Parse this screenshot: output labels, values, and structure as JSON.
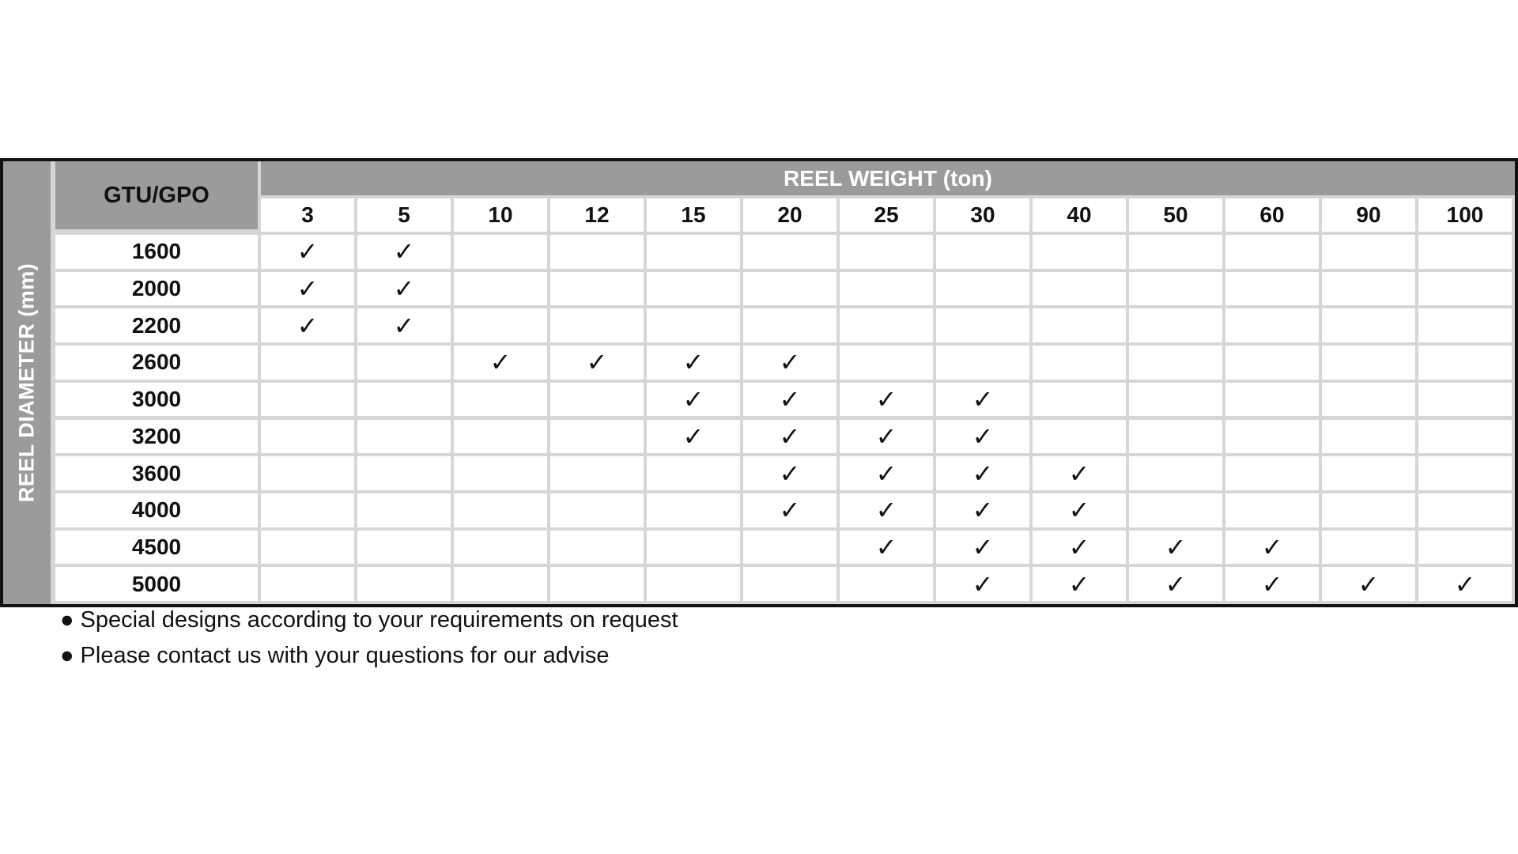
{
  "table": {
    "corner_header": "GTU/GPO",
    "column_group_header": "REEL WEIGHT (ton)",
    "row_group_header": "REEL DIAMETER (mm)",
    "weights": [
      "3",
      "5",
      "10",
      "12",
      "15",
      "20",
      "25",
      "30",
      "40",
      "50",
      "60",
      "90",
      "100"
    ],
    "check_symbol": "✓",
    "rows": [
      {
        "diameter": "1600",
        "checked": [
          "3",
          "5"
        ]
      },
      {
        "diameter": "2000",
        "checked": [
          "3",
          "5"
        ]
      },
      {
        "diameter": "2200",
        "checked": [
          "3",
          "5"
        ]
      },
      {
        "diameter": "2600",
        "checked": [
          "10",
          "12",
          "15",
          "20"
        ]
      },
      {
        "diameter": "3000",
        "checked": [
          "15",
          "20",
          "25",
          "30"
        ]
      },
      {
        "diameter": "3200",
        "checked": [
          "15",
          "20",
          "25",
          "30"
        ]
      },
      {
        "diameter": "3600",
        "checked": [
          "20",
          "25",
          "30",
          "40"
        ]
      },
      {
        "diameter": "4000",
        "checked": [
          "20",
          "25",
          "30",
          "40"
        ]
      },
      {
        "diameter": "4500",
        "checked": [
          "25",
          "30",
          "40",
          "50",
          "60"
        ]
      },
      {
        "diameter": "5000",
        "checked": [
          "30",
          "40",
          "50",
          "60",
          "90",
          "100"
        ]
      }
    ]
  },
  "notes": {
    "bullet": "●",
    "items": [
      "Special designs according to your requirements on request",
      "Please contact us with your questions for our advise"
    ]
  },
  "colors": {
    "header_gray": "#9b9b9b",
    "grid": "#d6d6d6",
    "border": "#111111"
  }
}
